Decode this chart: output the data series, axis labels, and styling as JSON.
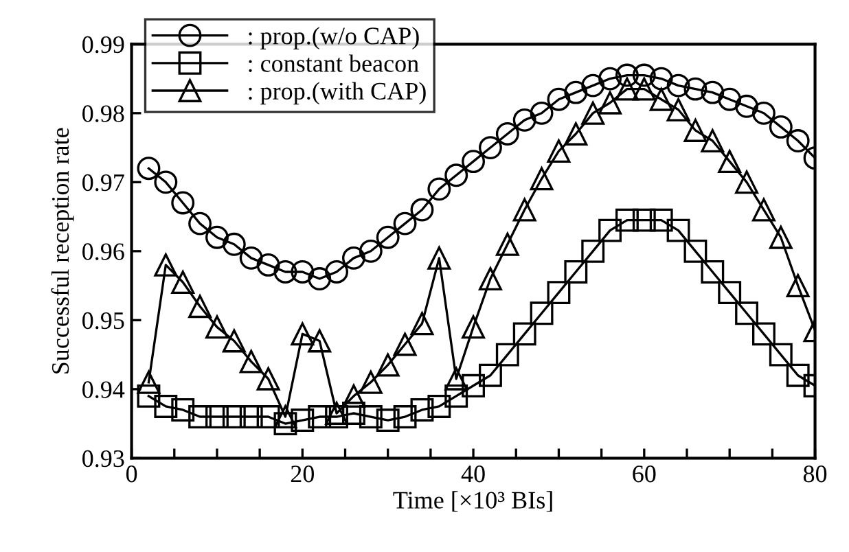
{
  "chart_data": {
    "type": "line",
    "xlabel": "Time [×10³ BIs]",
    "ylabel": "Successful reception rate",
    "x": [
      2,
      4,
      6,
      8,
      10,
      12,
      14,
      16,
      18,
      20,
      22,
      24,
      26,
      28,
      30,
      32,
      34,
      36,
      38,
      40,
      42,
      44,
      46,
      48,
      50,
      52,
      54,
      56,
      58,
      60,
      62,
      64,
      66,
      68,
      70,
      72,
      74,
      76,
      78,
      80
    ],
    "series": [
      {
        "name": ": prop.(w/o CAP)",
        "color": "#000000",
        "marker": "circle",
        "values": [
          0.972,
          0.97,
          0.967,
          0.964,
          0.962,
          0.961,
          0.959,
          0.958,
          0.957,
          0.957,
          0.956,
          0.957,
          0.959,
          0.96,
          0.962,
          0.964,
          0.966,
          0.969,
          0.971,
          0.973,
          0.975,
          0.977,
          0.979,
          0.98,
          0.982,
          0.983,
          0.984,
          0.985,
          0.9855,
          0.9855,
          0.985,
          0.984,
          0.9835,
          0.983,
          0.982,
          0.981,
          0.98,
          0.978,
          0.976,
          0.9735
        ]
      },
      {
        "name": ": constant beacon",
        "color": "#000000",
        "marker": "square",
        "values": [
          0.939,
          0.9375,
          0.937,
          0.936,
          0.936,
          0.936,
          0.936,
          0.936,
          0.935,
          0.9355,
          0.936,
          0.936,
          0.9365,
          0.936,
          0.9355,
          0.936,
          0.937,
          0.9375,
          0.939,
          0.9405,
          0.942,
          0.945,
          0.948,
          0.951,
          0.954,
          0.957,
          0.96,
          0.963,
          0.9645,
          0.9645,
          0.9645,
          0.963,
          0.96,
          0.957,
          0.954,
          0.951,
          0.948,
          0.945,
          0.942,
          0.9405
        ]
      },
      {
        "name": ": prop.(with CAP)",
        "color": "#000000",
        "marker": "triangle",
        "values": [
          0.941,
          0.958,
          0.9555,
          0.952,
          0.949,
          0.947,
          0.944,
          0.9415,
          0.936,
          0.948,
          0.947,
          0.9365,
          0.939,
          0.941,
          0.9435,
          0.9465,
          0.9495,
          0.959,
          0.9415,
          0.949,
          0.956,
          0.961,
          0.966,
          0.9705,
          0.9745,
          0.977,
          0.98,
          0.9815,
          0.9835,
          0.9835,
          0.982,
          0.9805,
          0.9775,
          0.976,
          0.973,
          0.97,
          0.966,
          0.962,
          0.955,
          0.9485
        ]
      }
    ],
    "xlim": [
      0,
      80
    ],
    "xticks": [
      0,
      {
        "value": 5,
        "label": null
      },
      {
        "value": 10,
        "label": null
      },
      {
        "value": 15,
        "label": null
      },
      20,
      {
        "value": 25,
        "label": null
      },
      {
        "value": 30,
        "label": null
      },
      {
        "value": 35,
        "label": null
      },
      40,
      {
        "value": 45,
        "label": null
      },
      {
        "value": 50,
        "label": null
      },
      {
        "value": 55,
        "label": null
      },
      60,
      {
        "value": 65,
        "label": null
      },
      {
        "value": 70,
        "label": null
      },
      {
        "value": 75,
        "label": null
      },
      80
    ],
    "ylim": [
      0.93,
      0.99
    ],
    "yticks": [
      0.93,
      0.94,
      0.95,
      0.96,
      0.97,
      0.98,
      0.99
    ],
    "legend": "top left",
    "grid": false,
    "line_style": "solid"
  }
}
